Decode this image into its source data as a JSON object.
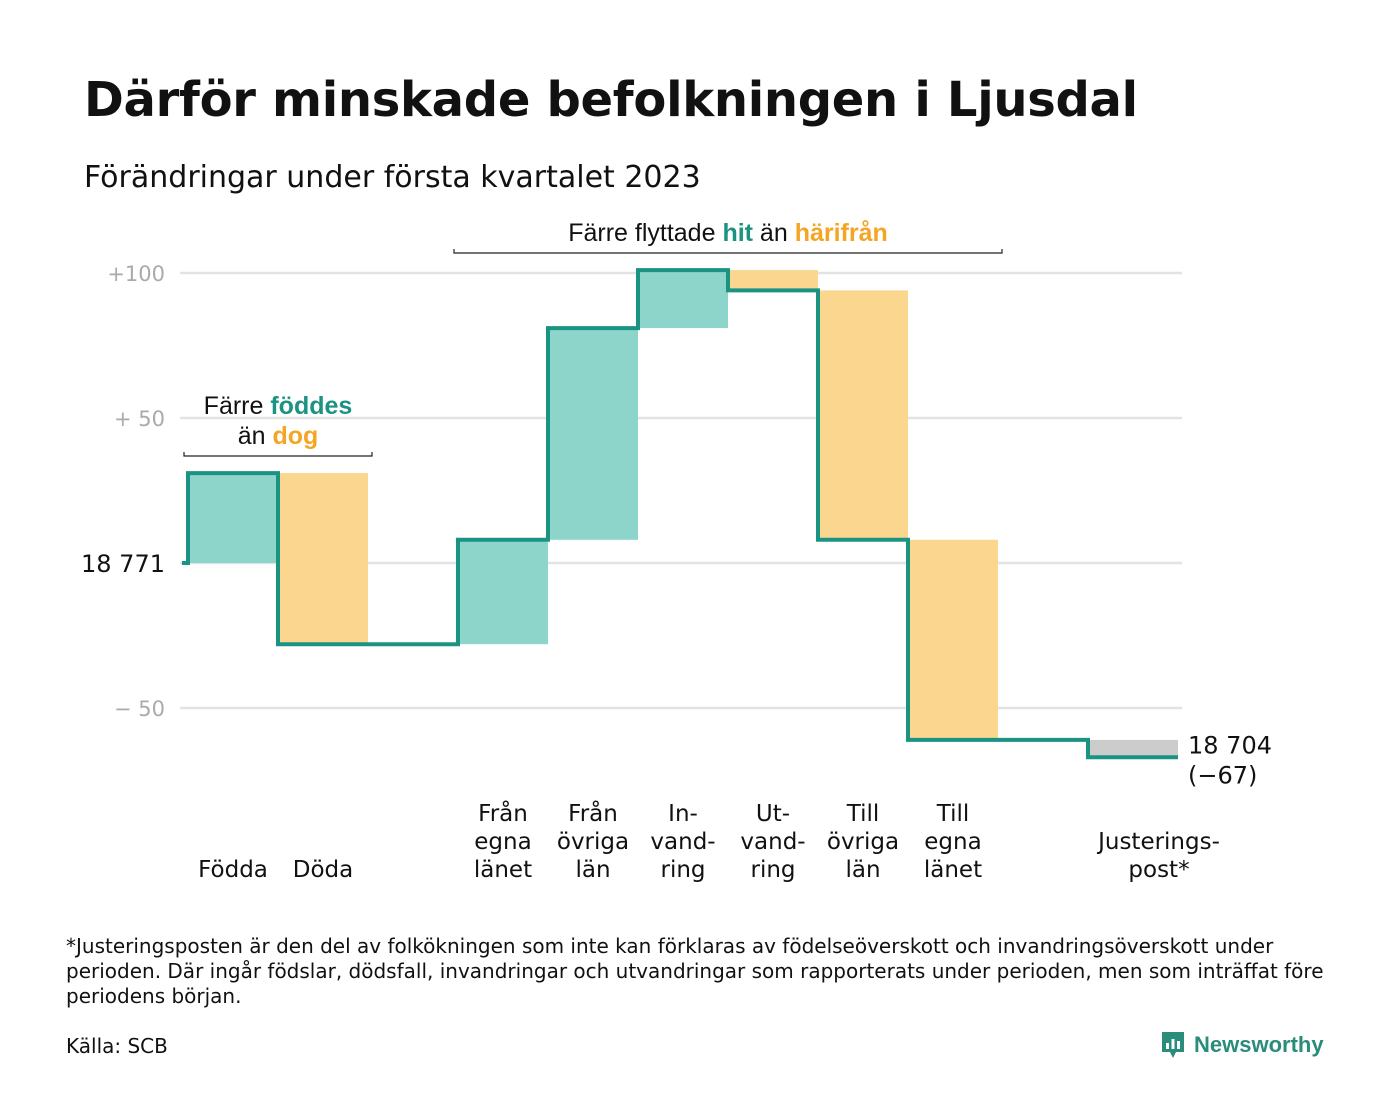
{
  "title": "Därför minskade befolkningen i Ljusdal",
  "subtitle": "Förändringar under första kvartalet 2023",
  "colors": {
    "inflow": "#8dd5cb",
    "outflow": "#fad68e",
    "adjustment": "#cccccc",
    "line": "#1b9383",
    "grid": "#e3e3e3",
    "teal_text": "#1b9383",
    "orange_text": "#f5a524"
  },
  "chart_data": {
    "type": "waterfall",
    "baseline_value": "18 771",
    "baseline_population": 18771,
    "y_ticks": [
      {
        "value": 100,
        "label": "+100"
      },
      {
        "value": 50,
        "label": "+ 50"
      },
      {
        "value": 0,
        "label": "18 771"
      },
      {
        "value": -50,
        "label": "− 50"
      }
    ],
    "ylim": [
      -75,
      105
    ],
    "steps": [
      {
        "label": [
          "",
          "",
          "Födda"
        ],
        "start": 0,
        "end": 31,
        "kind": "inflow"
      },
      {
        "label": [
          "",
          "",
          "Döda"
        ],
        "start": 31,
        "end": -28,
        "kind": "outflow"
      },
      {
        "label": [
          "",
          "",
          ""
        ],
        "start": -28,
        "end": -28,
        "kind": "gap"
      },
      {
        "label": [
          "Från",
          "egna",
          "länet"
        ],
        "start": -28,
        "end": 8,
        "kind": "inflow"
      },
      {
        "label": [
          "Från",
          "övriga",
          "län"
        ],
        "start": 8,
        "end": 81,
        "kind": "inflow"
      },
      {
        "label": [
          "In-",
          "vand-",
          "ring"
        ],
        "start": 81,
        "end": 101,
        "kind": "inflow"
      },
      {
        "label": [
          "Ut-",
          "vand-",
          "ring"
        ],
        "start": 101,
        "end": 94,
        "kind": "outflow"
      },
      {
        "label": [
          "Till",
          "övriga",
          "län"
        ],
        "start": 94,
        "end": 8,
        "kind": "outflow"
      },
      {
        "label": [
          "Till",
          "egna",
          "länet"
        ],
        "start": 8,
        "end": -61,
        "kind": "outflow"
      },
      {
        "label": [
          "",
          "",
          ""
        ],
        "start": -61,
        "end": -61,
        "kind": "gap"
      },
      {
        "label": [
          "",
          "Justerings-",
          "post*"
        ],
        "start": -61,
        "end": -67,
        "kind": "adjustment"
      }
    ],
    "end_value": "18 704",
    "end_change": "(−67)",
    "annotations": [
      {
        "lines": [
          [
            {
              "t": "Färre ",
              "c": "text"
            },
            {
              "t": "föddes",
              "c": "teal"
            }
          ],
          [
            {
              "t": "än ",
              "c": "text"
            },
            {
              "t": "dog",
              "c": "orange"
            }
          ]
        ],
        "from_step": 0,
        "to_step": 1
      },
      {
        "lines": [
          [
            {
              "t": "Färre flyttade ",
              "c": "text"
            },
            {
              "t": "hit",
              "c": "teal"
            },
            {
              "t": " än ",
              "c": "text"
            },
            {
              "t": "härifrån",
              "c": "orange"
            }
          ]
        ],
        "from_step": 3,
        "to_step": 8
      }
    ]
  },
  "footnote": "*Justeringsposten är den del av folkökningen som inte kan förklaras av födelseöverskott och invandringsöverskott under perioden. Där ingår födslar, dödsfall, invandringar och utvandringar som rapporterats under perioden, men som inträffat före periodens början.",
  "source": "Källa: SCB",
  "brand": {
    "name": "Newsworthy",
    "icon": "newsworthy-logo-icon"
  }
}
